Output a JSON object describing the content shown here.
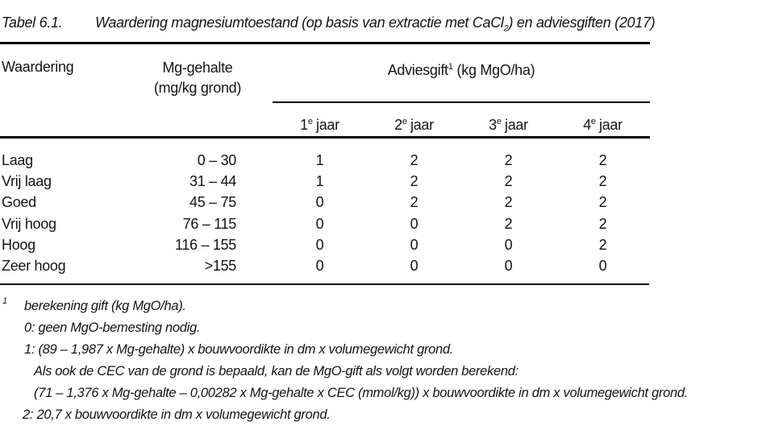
{
  "title": {
    "label": "Tabel 6.1.",
    "text_pre": "Waardering magnesiumtoestand (op basis van extractie met CaCl",
    "text_sub": "2",
    "text_post": ") en adviesgiften (2017)"
  },
  "table": {
    "columns": {
      "waardering": "Waardering",
      "mg_line1": "Mg-gehalte",
      "mg_line2": "(mg/kg grond)",
      "adviesgift_pre": "Adviesgift",
      "adviesgift_sup": "1",
      "adviesgift_post": " (kg MgO/ha)",
      "year_sup": "e",
      "year_word": "jaar",
      "years": [
        "1",
        "2",
        "3",
        "4"
      ]
    },
    "rows": [
      [
        "Laag",
        "0 – 30",
        "1",
        "2",
        "2",
        "2"
      ],
      [
        "Vrij laag",
        "31 – 44",
        "1",
        "2",
        "2",
        "2"
      ],
      [
        "Goed",
        "45 – 75",
        "0",
        "2",
        "2",
        "2"
      ],
      [
        "Vrij hoog",
        "76 – 115",
        "0",
        "0",
        "2",
        "2"
      ],
      [
        "Hoog",
        "116 – 155",
        "0",
        "0",
        "0",
        "2"
      ],
      [
        "Zeer hoog",
        ">155",
        "0",
        "0",
        "0",
        "0"
      ]
    ]
  },
  "footnotes": {
    "marker": "1",
    "lines": [
      "berekening gift (kg MgO/ha).",
      "0: geen MgO-bemesting nodig.",
      "1:  (89 – 1,987 x Mg-gehalte) x bouwvoordikte in dm x volumegewicht grond.",
      "Als ook de CEC van de grond is bepaald, kan de MgO-gift als volgt worden berekend:",
      "(71 – 1,376 x Mg-gehalte – 0,00282 x Mg-gehalte x CEC (mmol/kg)) x bouwvoordikte in dm x volumegewicht grond.",
      "2: 20,7 x bouwvoordikte in dm x volumegewicht grond."
    ]
  },
  "colors": {
    "background": "#ffffff",
    "text": "#141414",
    "rule": "#000000"
  }
}
